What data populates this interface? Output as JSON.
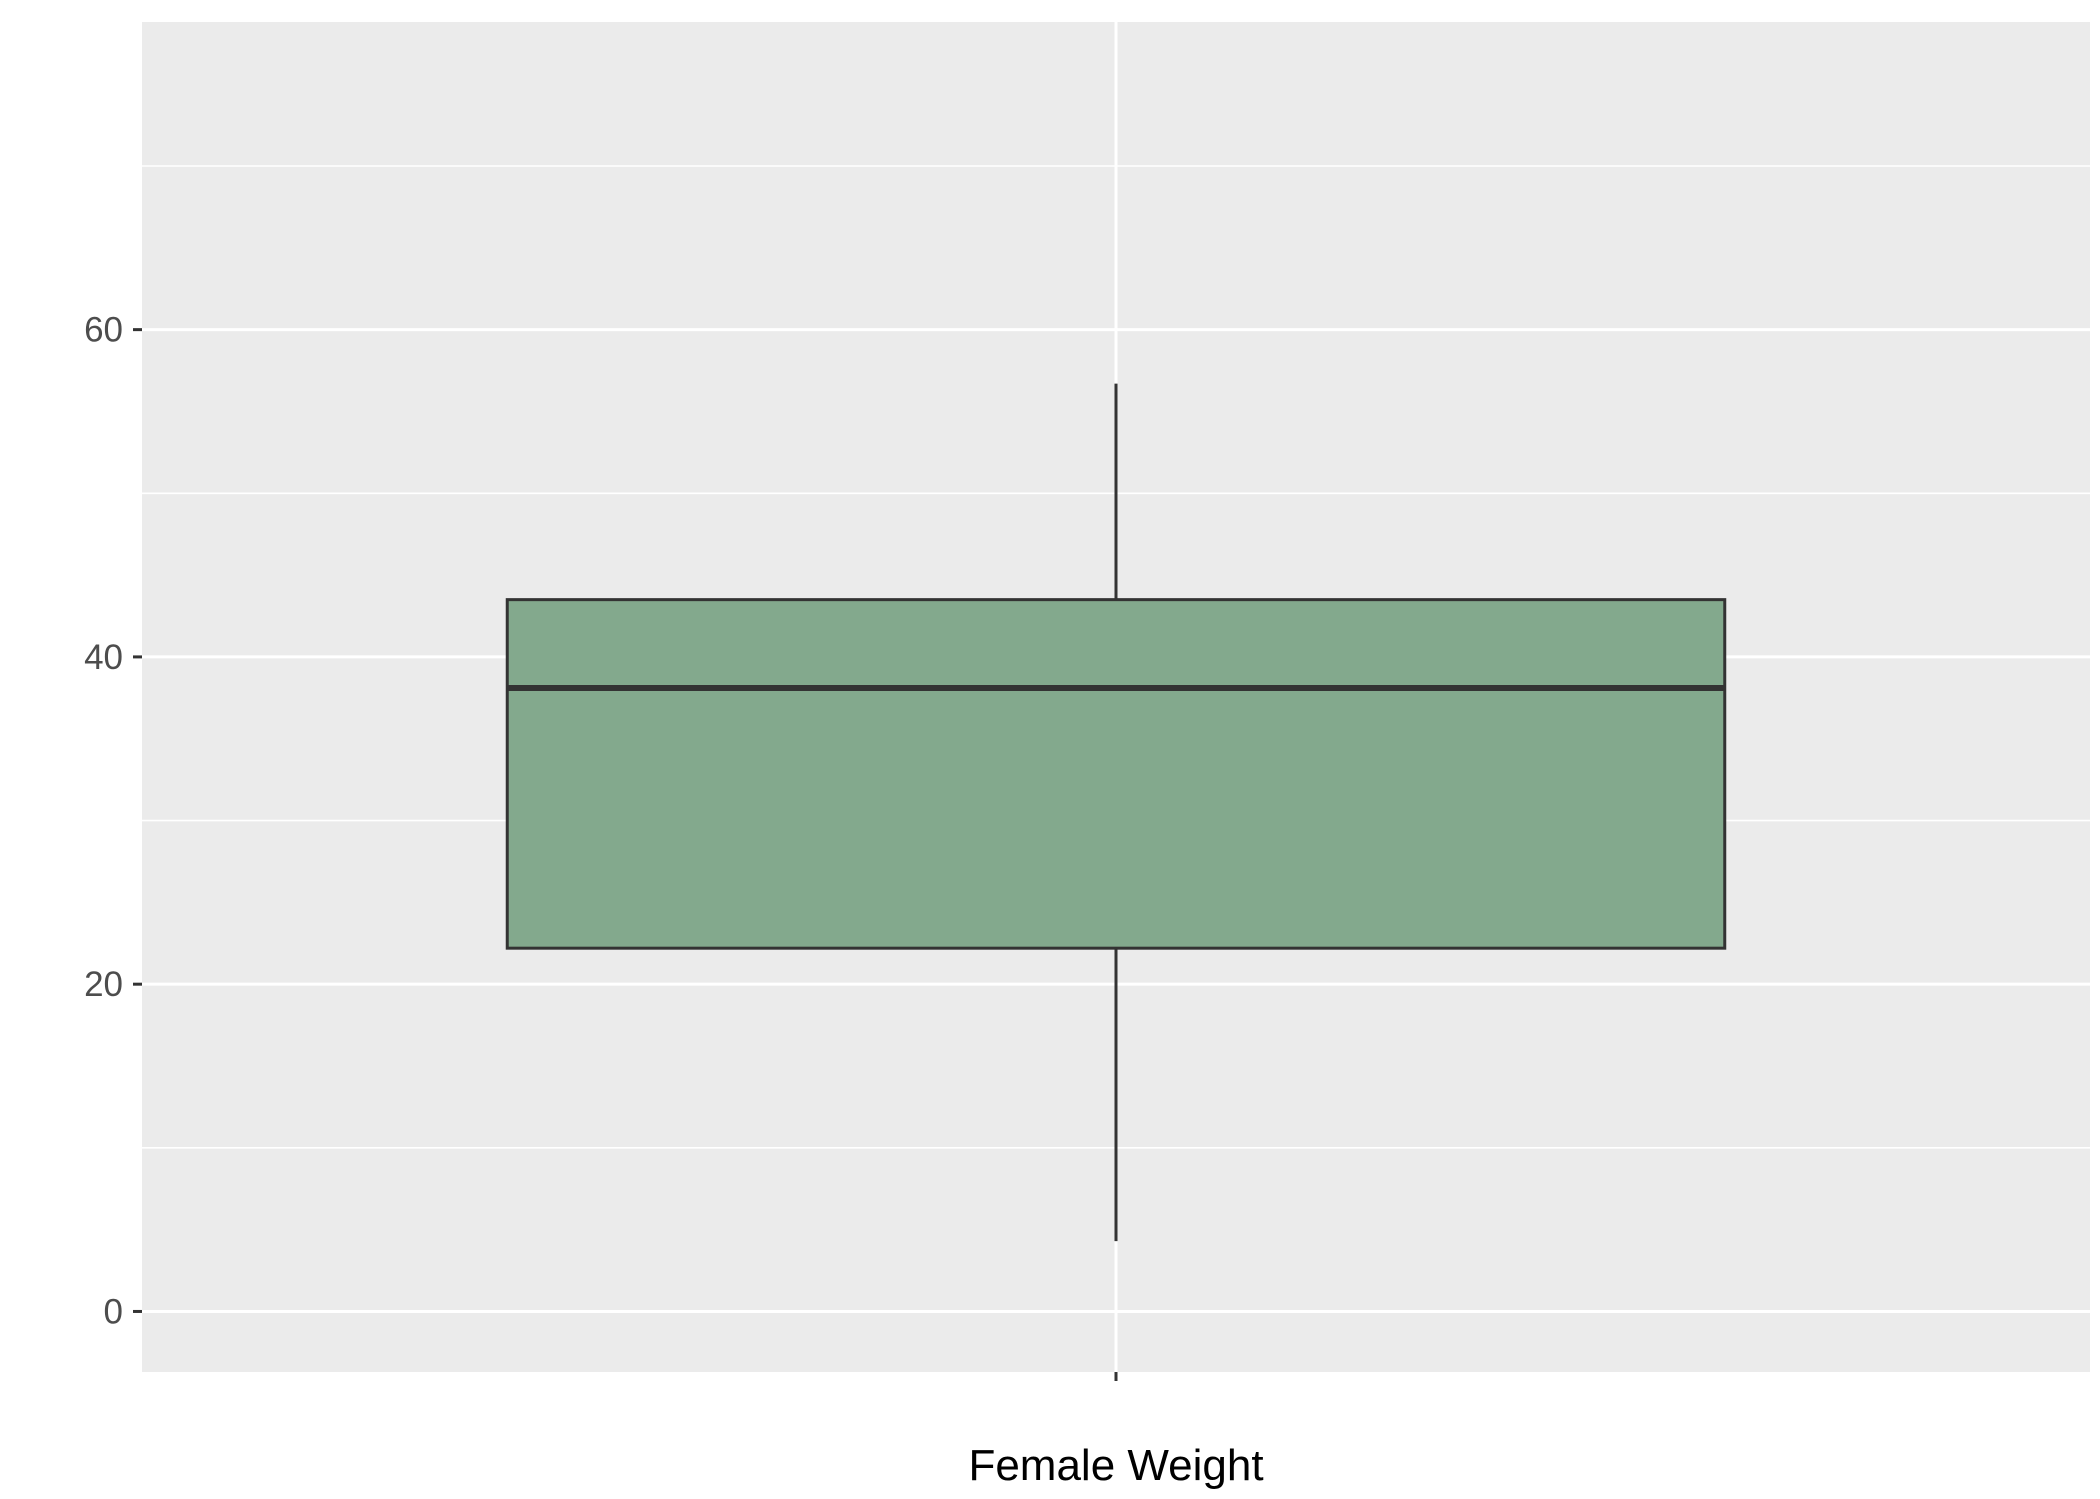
{
  "chart_data": {
    "type": "boxplot",
    "title": "",
    "xlabel": "Female Weight",
    "ylabel": "",
    "categories": [
      ""
    ],
    "boxes": [
      {
        "category": "",
        "whisker_low": 4.3,
        "q1": 22.2,
        "median": 38.1,
        "q3": 43.5,
        "whisker_high": 56.7
      }
    ],
    "ylim": [
      -3.7,
      78.8
    ],
    "y_ticks": [
      0,
      20,
      40,
      60
    ],
    "y_tick_labels": [
      "0",
      "20",
      "40",
      "60"
    ],
    "y_minor_gridlines": [
      10,
      30,
      50,
      70
    ],
    "grid": true,
    "legend": "none"
  },
  "colors": {
    "panel_background": "#ebebeb",
    "gridline": "#ffffff",
    "box_fill": "#83a98d",
    "box_outline": "#333333",
    "tick_mark": "#333333",
    "tick_label": "#4d4d4d",
    "axis_title": "#000000"
  }
}
